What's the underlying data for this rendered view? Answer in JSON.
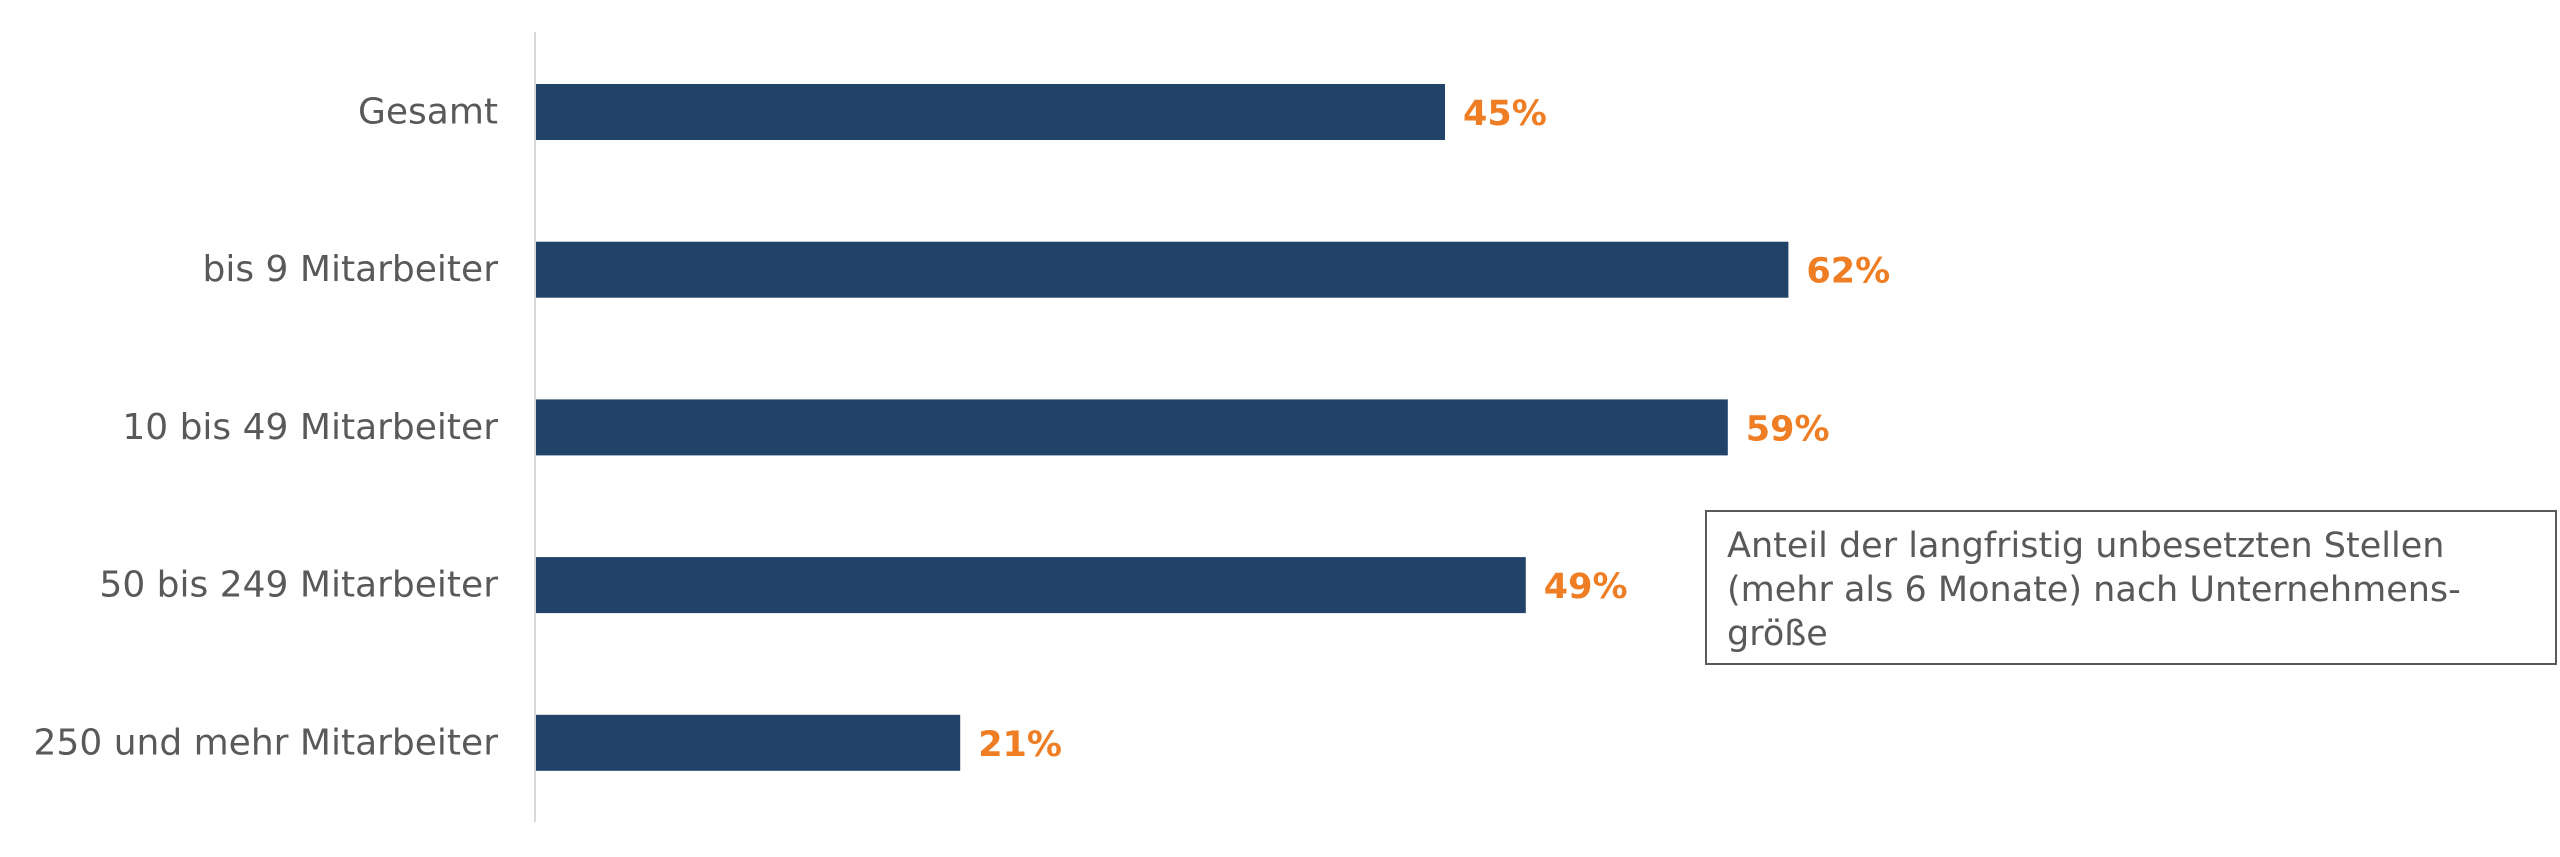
{
  "chart_data": {
    "type": "bar",
    "orientation": "horizontal",
    "categories": [
      "Gesamt",
      "bis 9 Mitarbeiter",
      "10 bis 49 Mitarbeiter",
      "50 bis 249 Mitarbeiter",
      "250 und mehr Mitarbeiter"
    ],
    "values": [
      45,
      62,
      59,
      49,
      21
    ],
    "value_labels": [
      "45%",
      "62%",
      "59%",
      "49%",
      "21%"
    ],
    "unit": "%",
    "xlim": [
      0,
      100
    ],
    "grid": false,
    "legend_text": "Anteil der langfristig unbesetzten Stellen\n(mehr als 6 Monate) nach Unternehmens-\ngröße",
    "legend_placement": "right",
    "colors": {
      "bar": "#21436a",
      "value_label": "#ee7d23",
      "category_label": "#595959",
      "axis_line": "#d9d9d9"
    }
  }
}
